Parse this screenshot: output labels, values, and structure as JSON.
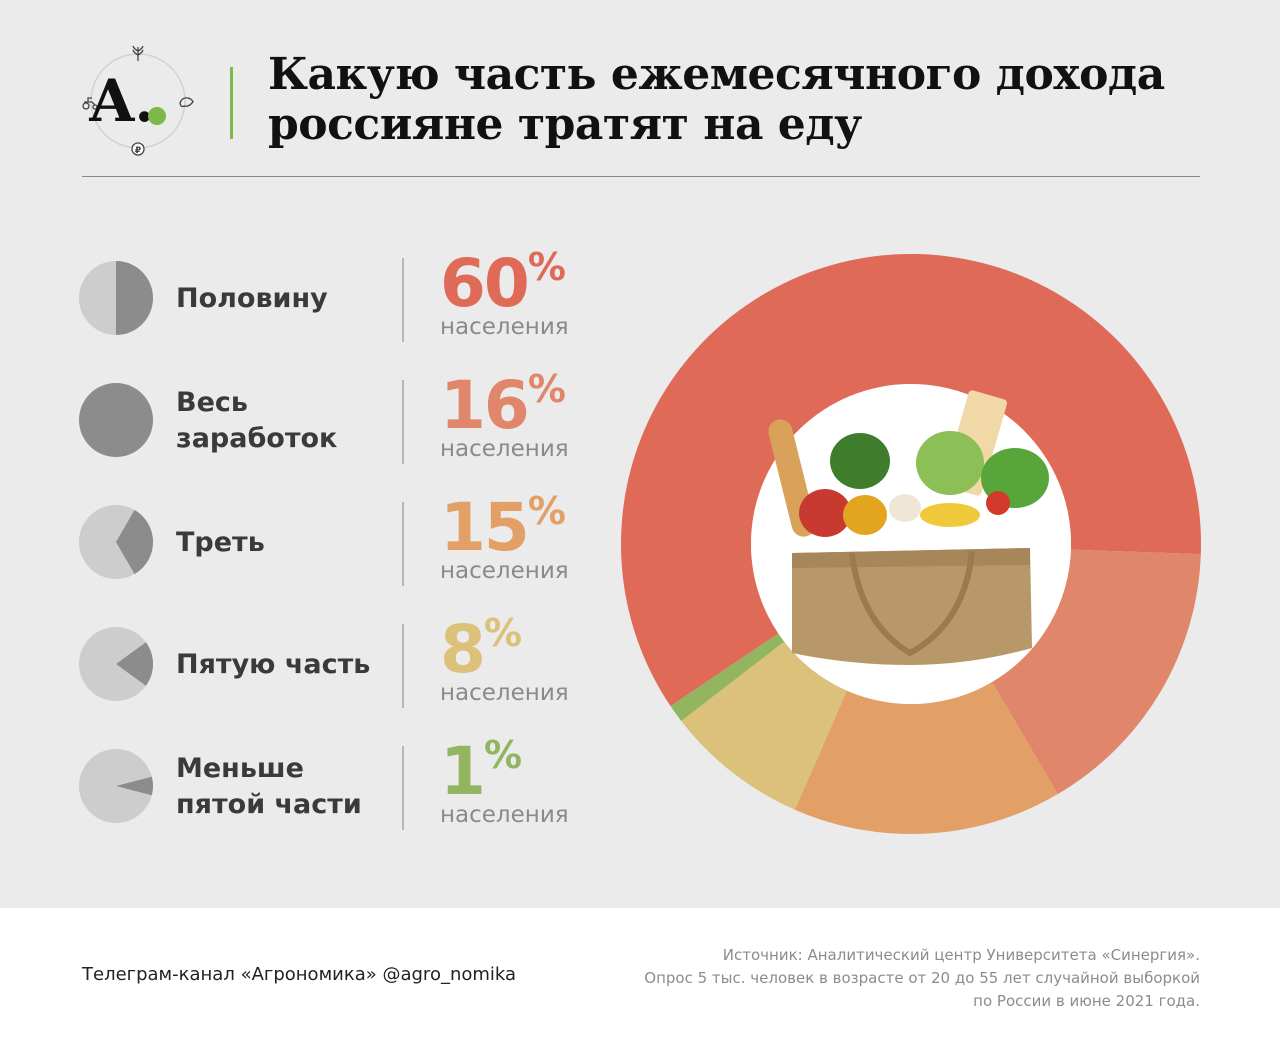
{
  "header": {
    "logo_letter": "A.",
    "title_lines": [
      "Какую часть ежемесячного дохода",
      "россияне тратят на еду"
    ]
  },
  "colors": {
    "half": "#e06a58",
    "all": "#e0866b",
    "third": "#e2a067",
    "fifth": "#dbc17a",
    "less_fifth": "#93b560",
    "mini_pie_light": "#cdcdcd",
    "mini_pie_dark": "#8c8c8c",
    "accent": "#7db84a"
  },
  "rows": [
    {
      "label": "Половину",
      "percent": "60",
      "unit": "населения",
      "share_of_income": 0.5,
      "color": "#e06a58"
    },
    {
      "label": "Весь заработок",
      "percent": "16",
      "unit": "населения",
      "share_of_income": 1.0,
      "color": "#e0866b"
    },
    {
      "label": "Треть",
      "percent": "15",
      "unit": "населения",
      "share_of_income": 0.333,
      "color": "#e2a067"
    },
    {
      "label": "Пятую часть",
      "percent": "8",
      "unit": "населения",
      "share_of_income": 0.2,
      "color": "#dbc17a"
    },
    {
      "label": "Меньше пятой части",
      "percent": "1",
      "unit": "населения",
      "share_of_income": 0.08,
      "color": "#93b560"
    }
  ],
  "chart_data": {
    "type": "pie",
    "title": "Какую часть ежемесячного дохода россияне тратят на еду",
    "categories": [
      "Половину",
      "Весь заработок",
      "Треть",
      "Пятую часть",
      "Меньше пятой части"
    ],
    "values": [
      60,
      16,
      15,
      8,
      1
    ],
    "unit": "% населения",
    "colors": [
      "#e06a58",
      "#e0866b",
      "#e2a067",
      "#dbc17a",
      "#93b560"
    ],
    "center_image": "grocery-bag-with-vegetables"
  },
  "footer": {
    "channel": "Телеграм-канал «Агрономика» @agro_nomika",
    "source_lines": [
      "Источник: Аналитический центр Университета «Синергия».",
      "Опрос 5 тыс. человек в возрасте от 20 до 55 лет случайной выборкой",
      "по России в июне 2021 года."
    ]
  }
}
